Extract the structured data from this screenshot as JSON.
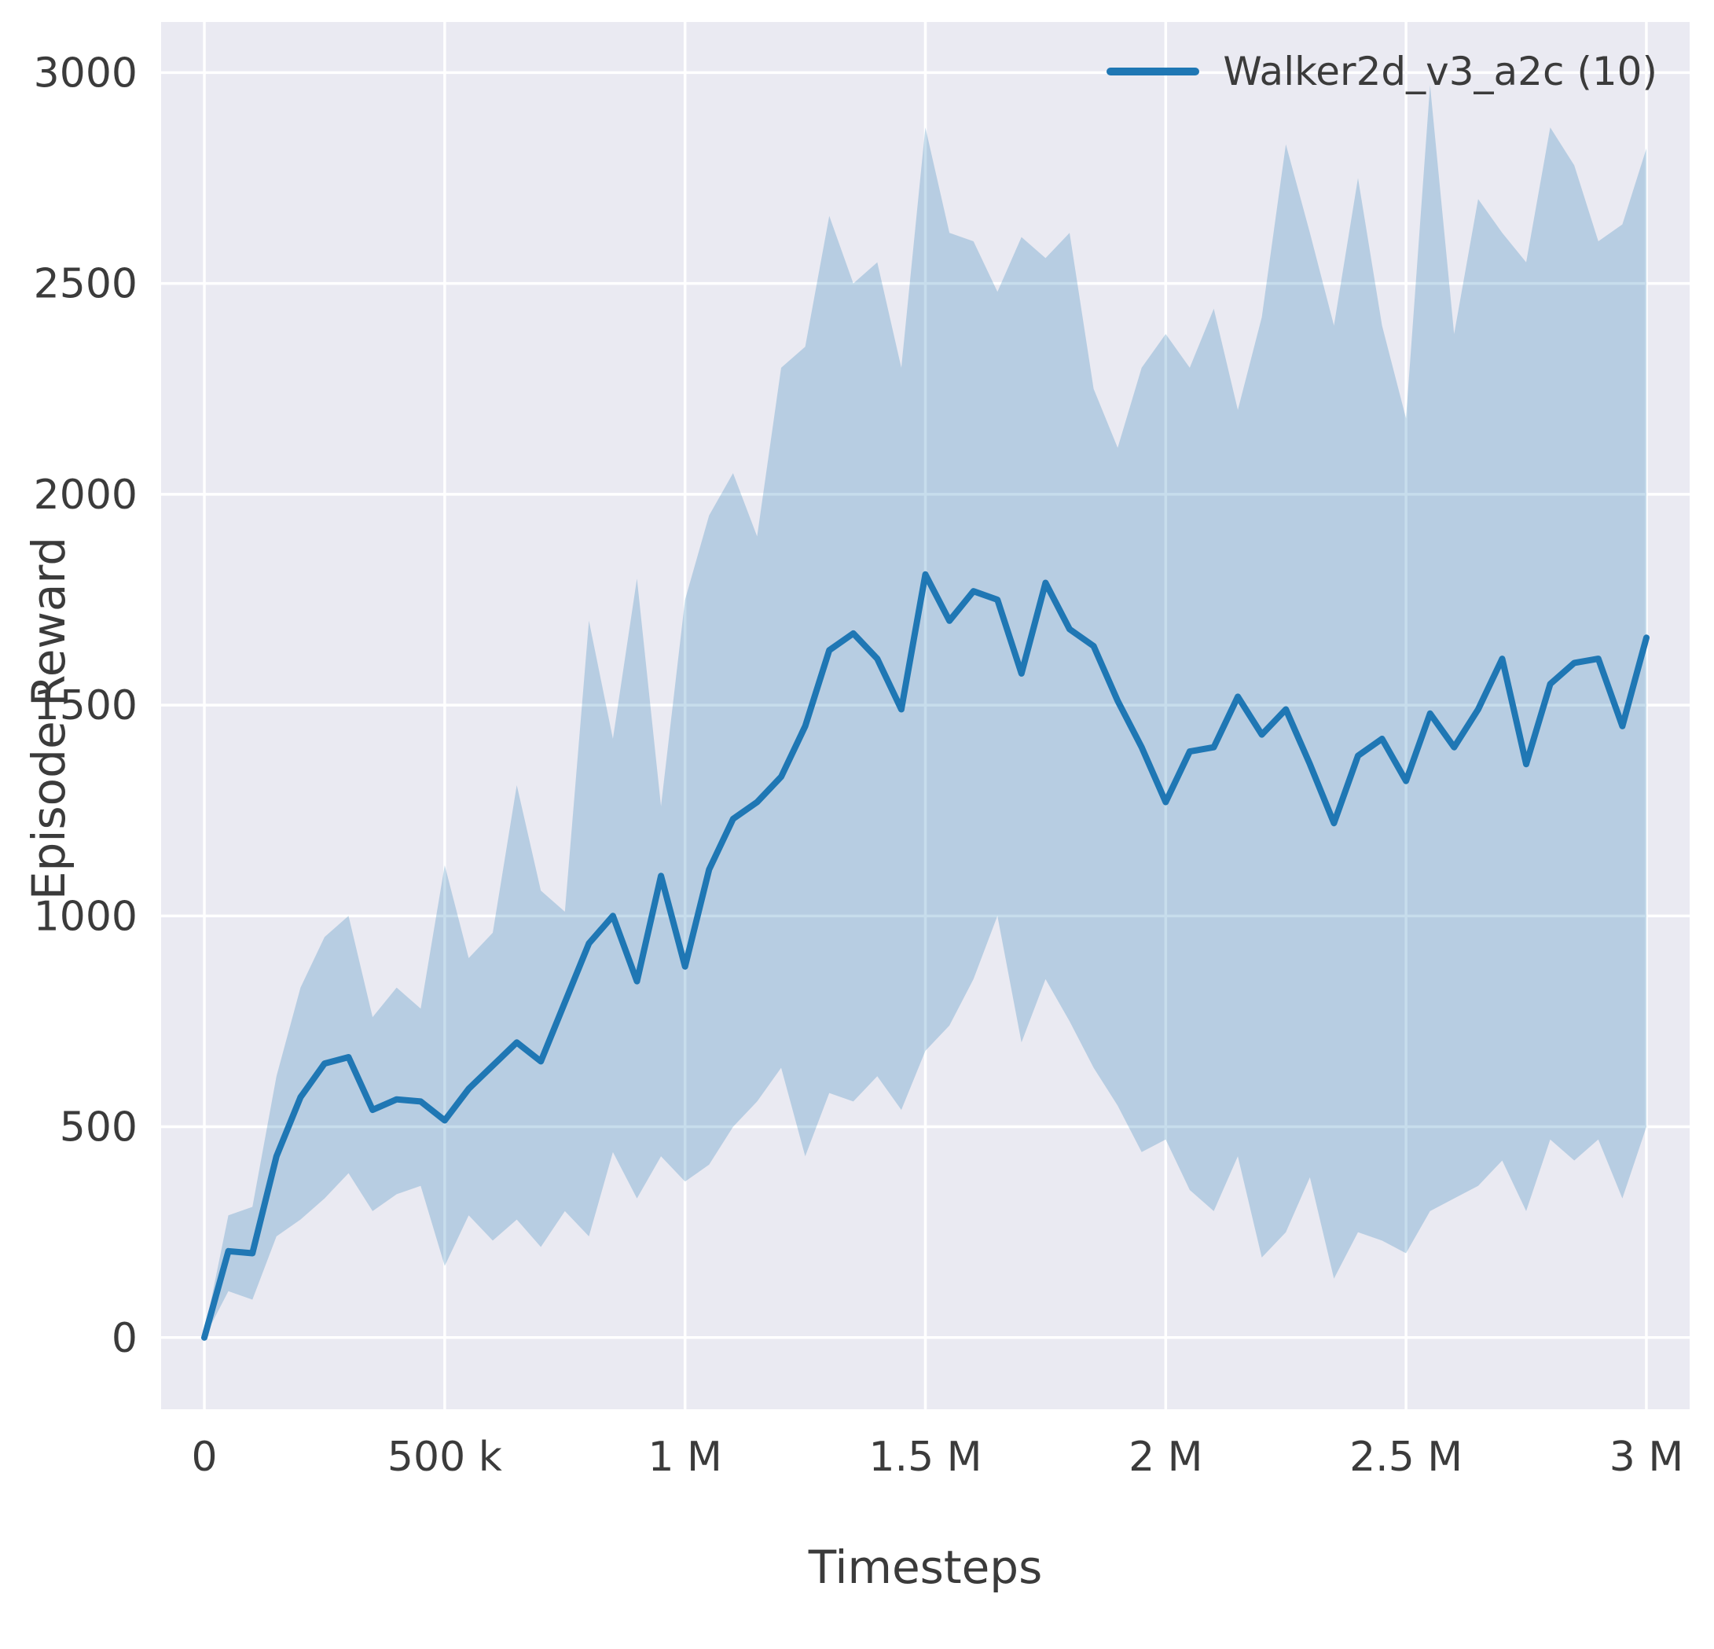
{
  "chart_data": {
    "type": "line",
    "title": "",
    "xlabel": "Timesteps",
    "ylabel": "Episode Reward",
    "legend_position": "upper right",
    "grid": true,
    "xlim": [
      -90000,
      3090000
    ],
    "ylim": [
      -170,
      3120
    ],
    "xticks": {
      "values": [
        0,
        500000,
        1000000,
        1500000,
        2000000,
        2500000,
        3000000
      ],
      "labels": [
        "0",
        "500 k",
        "1 M",
        "1.5 M",
        "2 M",
        "2.5 M",
        "3 M"
      ]
    },
    "yticks": {
      "values": [
        0,
        500,
        1000,
        1500,
        2000,
        2500,
        3000
      ],
      "labels": [
        "0",
        "500",
        "1000",
        "1500",
        "2000",
        "2500",
        "3000"
      ]
    },
    "colors": {
      "axes_background": "#eaeaf2",
      "grid": "#ffffff",
      "line": "#1f77b4",
      "band": "rgba(31,119,180,0.25)",
      "text": "#3b3b3b"
    },
    "series": [
      {
        "name": "Walker2d_v3_a2c (10)",
        "color": "#1f77b4",
        "band_alpha": 0.25,
        "x": [
          0,
          50000,
          100000,
          150000,
          200000,
          250000,
          300000,
          350000,
          400000,
          450000,
          500000,
          550000,
          600000,
          650000,
          700000,
          750000,
          800000,
          850000,
          900000,
          950000,
          1000000,
          1050000,
          1100000,
          1150000,
          1200000,
          1250000,
          1300000,
          1350000,
          1400000,
          1450000,
          1500000,
          1550000,
          1600000,
          1650000,
          1700000,
          1750000,
          1800000,
          1850000,
          1900000,
          1950000,
          2000000,
          2050000,
          2100000,
          2150000,
          2200000,
          2250000,
          2300000,
          2350000,
          2400000,
          2450000,
          2500000,
          2550000,
          2600000,
          2650000,
          2700000,
          2750000,
          2800000,
          2850000,
          2900000,
          2950000,
          3000000
        ],
        "mean": [
          0,
          205,
          200,
          430,
          570,
          650,
          665,
          540,
          565,
          560,
          515,
          590,
          645,
          700,
          655,
          795,
          935,
          1000,
          845,
          1095,
          880,
          1110,
          1230,
          1270,
          1330,
          1450,
          1630,
          1670,
          1610,
          1490,
          1810,
          1700,
          1770,
          1750,
          1575,
          1790,
          1680,
          1640,
          1510,
          1400,
          1270,
          1390,
          1400,
          1520,
          1430,
          1490,
          1360,
          1220,
          1380,
          1420,
          1320,
          1480,
          1400,
          1490,
          1610,
          1360,
          1550,
          1600,
          1610,
          1450,
          1660
        ],
        "band_upper": [
          10,
          290,
          310,
          620,
          830,
          950,
          1000,
          760,
          830,
          780,
          1120,
          900,
          960,
          1310,
          1060,
          1010,
          1700,
          1420,
          1800,
          1260,
          1750,
          1950,
          2050,
          1900,
          2300,
          2350,
          2660,
          2500,
          2550,
          2300,
          2870,
          2620,
          2600,
          2480,
          2610,
          2560,
          2620,
          2250,
          2110,
          2300,
          2380,
          2300,
          2440,
          2200,
          2420,
          2830,
          2620,
          2400,
          2750,
          2400,
          2180,
          2970,
          2380,
          2700,
          2620,
          2550,
          2870,
          2780,
          2600,
          2640,
          2820
        ],
        "band_lower": [
          0,
          110,
          90,
          240,
          280,
          330,
          390,
          300,
          340,
          360,
          170,
          290,
          230,
          280,
          215,
          300,
          240,
          440,
          330,
          430,
          370,
          410,
          500,
          560,
          640,
          430,
          580,
          560,
          620,
          540,
          680,
          740,
          850,
          1000,
          700,
          850,
          750,
          640,
          550,
          440,
          470,
          350,
          300,
          430,
          190,
          250,
          380,
          140,
          250,
          230,
          200,
          300,
          330,
          360,
          420,
          300,
          470,
          420,
          470,
          330,
          500
        ]
      }
    ]
  }
}
